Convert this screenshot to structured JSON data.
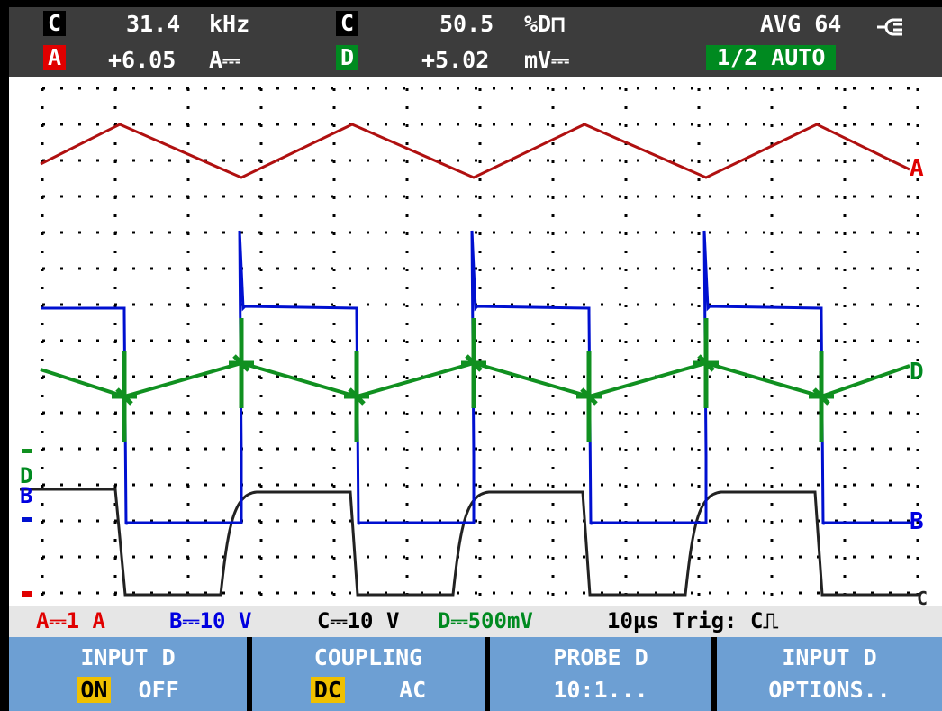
{
  "header": {
    "reading1": {
      "channel": "C",
      "value": "31.4",
      "unit": "kHz"
    },
    "reading2": {
      "channel": "A",
      "value": "+6.05",
      "unit": "A⎓"
    },
    "reading3": {
      "channel": "C",
      "value": "50.5",
      "unit": "%D⊓"
    },
    "reading4": {
      "channel": "D",
      "value": "+5.02",
      "unit": "mV⎓"
    },
    "averaging": "AVG 64",
    "mode": "1/2 AUTO"
  },
  "traces": {
    "a": "A",
    "b": "B",
    "c": "C",
    "d": "D",
    "marker_d": "D",
    "marker_b": "B"
  },
  "status": {
    "a": "A⎓1 A",
    "b": "B⎓10 V",
    "c": "C⎓10 V",
    "d": "D⎓500mV",
    "timebase": "10µs Trig: C⎍"
  },
  "softkeys": [
    {
      "title": "INPUT D",
      "options": [
        "ON",
        "OFF"
      ]
    },
    {
      "title": "COUPLING",
      "options": [
        "DC",
        "AC"
      ]
    },
    {
      "title": "PROBE D",
      "options": [
        "10:1..."
      ]
    },
    {
      "title": "INPUT D",
      "options": [
        "OPTIONS.."
      ]
    }
  ]
}
